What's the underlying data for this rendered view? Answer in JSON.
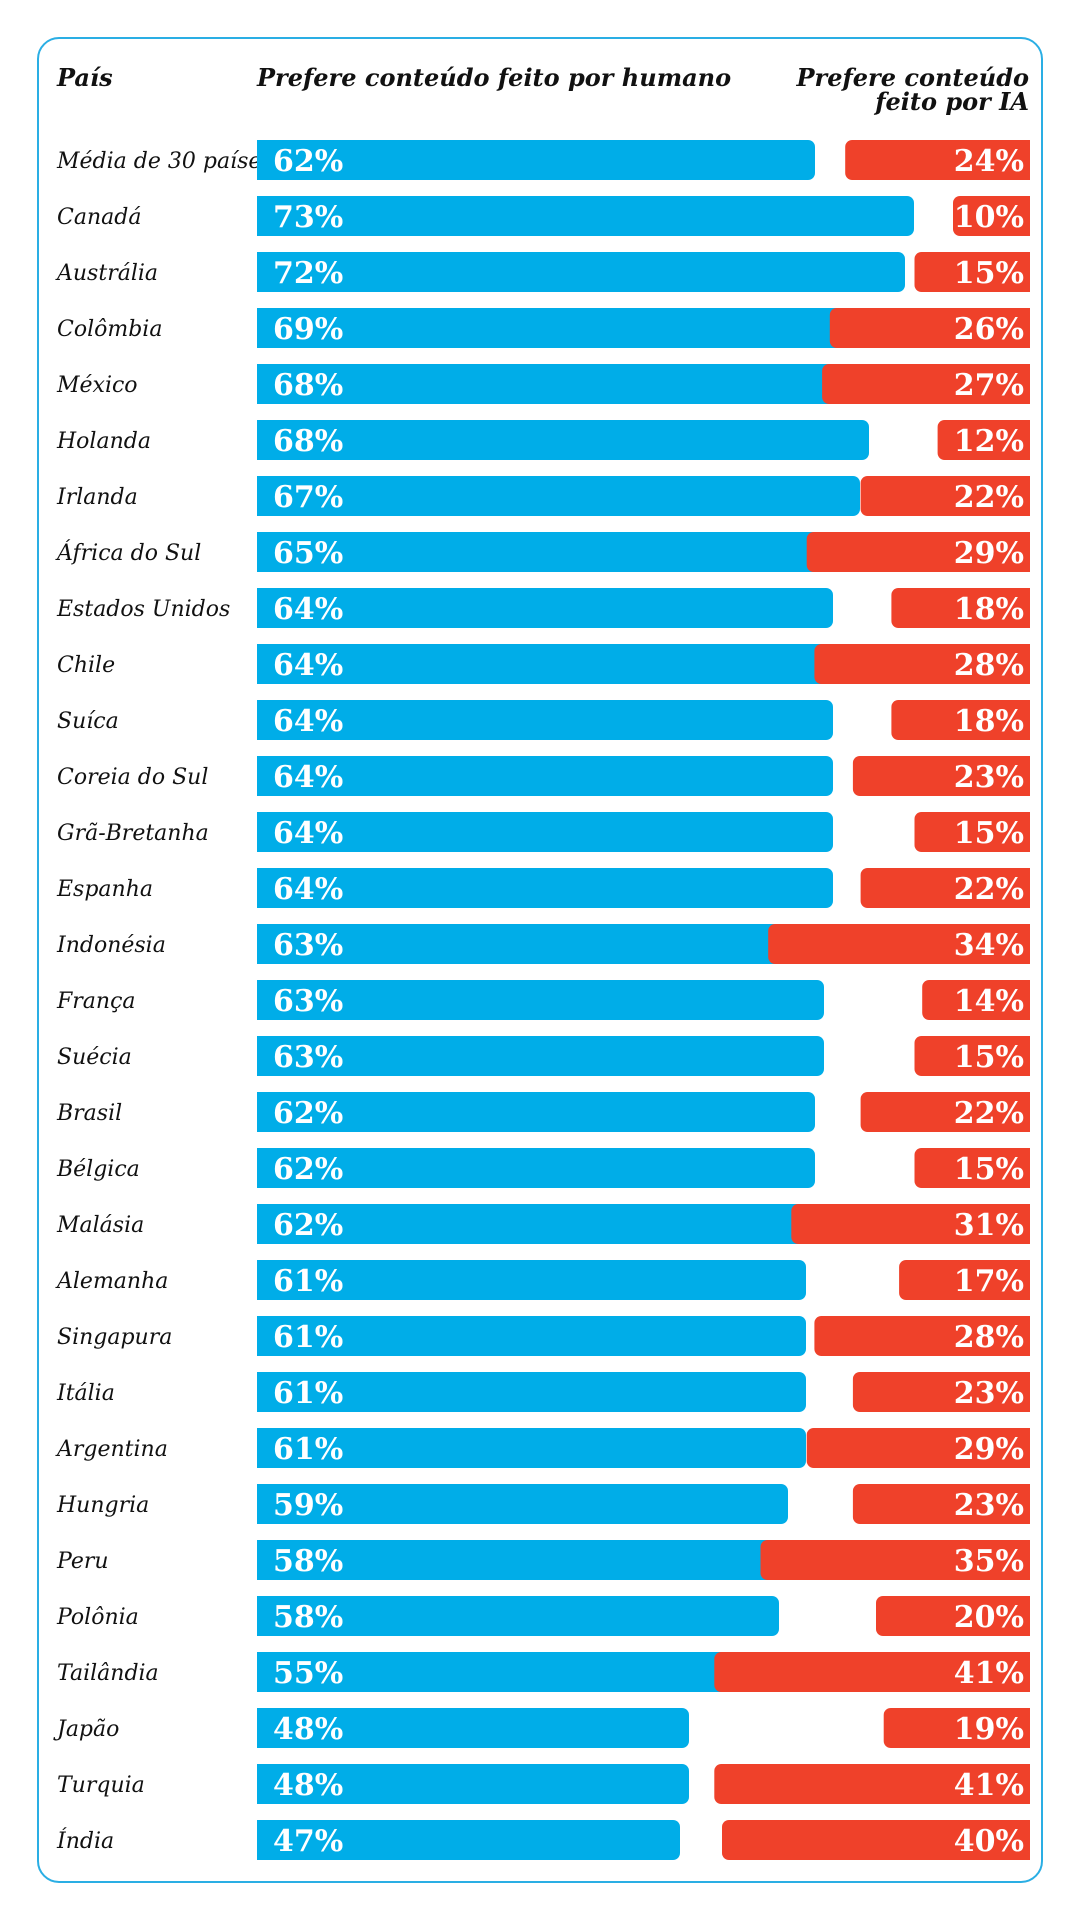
{
  "headers": {
    "country": "País",
    "human": "Prefere conteúdo feito por humano",
    "ai_line1": "Prefere conteúdo",
    "ai_line2": "feito por IA"
  },
  "colors": {
    "human": "#00ade8",
    "ai": "#ef412a",
    "frame": "#2aaee4"
  },
  "chart_data": {
    "type": "bar",
    "categories": [
      "Média de 30 países",
      "Canadá",
      "Austrália",
      "Colômbia",
      "México",
      "Holanda",
      "Irlanda",
      "África do Sul",
      "Estados Unidos",
      "Chile",
      "Suíca",
      "Coreia do Sul",
      "Grã-Bretanha",
      "Espanha",
      "Indonésia",
      "França",
      "Suécia",
      "Brasil",
      "Bélgica",
      "Malásia",
      "Alemanha",
      "Singapura",
      "Itália",
      "Argentina",
      "Hungria",
      "Peru",
      "Polônia",
      "Tailândia",
      "Japão",
      "Turquia",
      "Índia"
    ],
    "series": [
      {
        "name": "Prefere conteúdo feito por humano",
        "values": [
          62,
          73,
          72,
          69,
          68,
          68,
          67,
          65,
          64,
          64,
          64,
          64,
          64,
          64,
          63,
          63,
          63,
          62,
          62,
          62,
          61,
          61,
          61,
          61,
          59,
          58,
          58,
          55,
          48,
          48,
          47
        ]
      },
      {
        "name": "Prefere conteúdo feito por IA",
        "values": [
          24,
          10,
          15,
          26,
          27,
          12,
          22,
          29,
          18,
          28,
          18,
          23,
          15,
          22,
          34,
          14,
          15,
          22,
          15,
          31,
          17,
          28,
          23,
          29,
          23,
          35,
          20,
          41,
          19,
          41,
          40
        ]
      }
    ],
    "value_suffix": "%"
  }
}
